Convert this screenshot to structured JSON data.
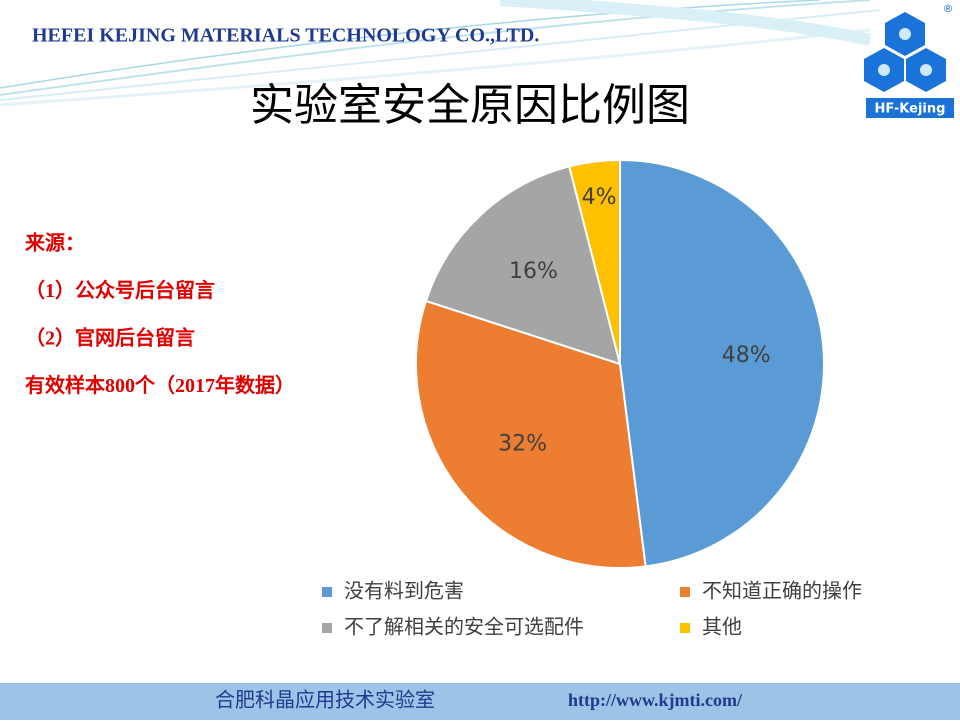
{
  "header": {
    "company": "HEFEI KEJING MATERIALS TECHNOLOGY CO.,LTD.",
    "logo_text": "HF-Kejing",
    "logo_mark": "®"
  },
  "title": "实验室安全原因比例图",
  "notes": [
    "来源：",
    "（1）公众号后台留言",
    "（2）官网后台留言",
    "有效样本800个（2017年数据）"
  ],
  "chart_data": {
    "type": "pie",
    "categories": [
      "没有料到危害",
      "不知道正确的操作",
      "不了解相关的安全可选配件",
      "其他"
    ],
    "values": [
      48,
      32,
      16,
      4
    ],
    "value_labels": [
      "48%",
      "32%",
      "16%",
      "4%"
    ],
    "colors": [
      "#5b9bd5",
      "#ed7d31",
      "#a5a5a5",
      "#ffc000"
    ],
    "legend": "bottom"
  },
  "footer": {
    "lab": "合肥科晶应用技术实验室",
    "url": "http://www.kjmti.com/"
  }
}
